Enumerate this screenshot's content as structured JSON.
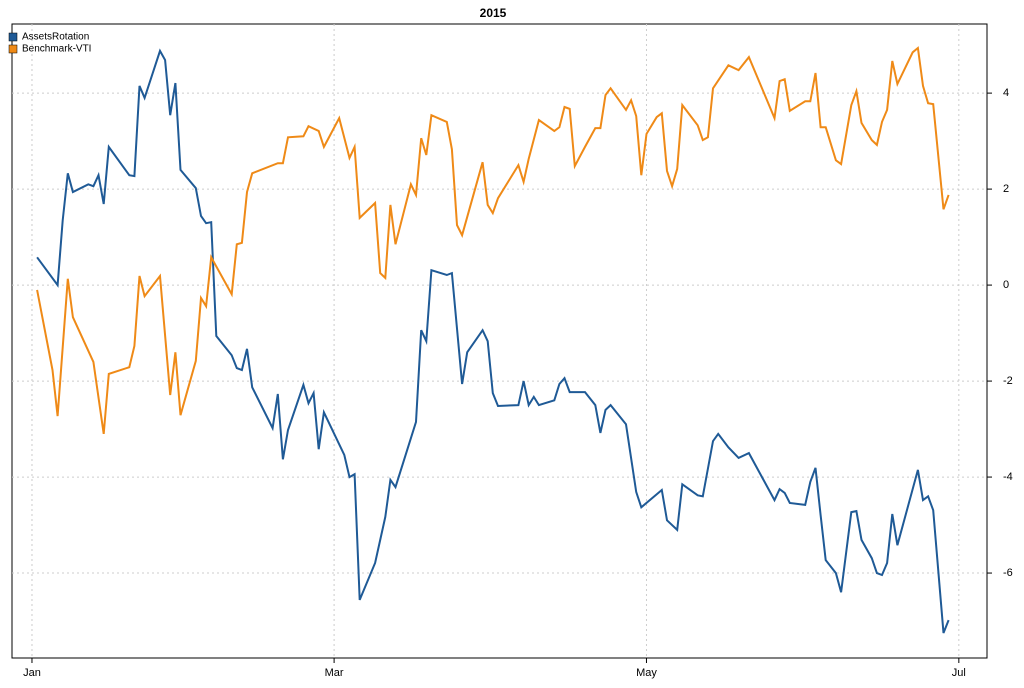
{
  "chart_data": {
    "type": "line",
    "title": "2015",
    "xlim": [
      -2.9,
      187.5
    ],
    "ylim": [
      -7.77,
      5.44
    ],
    "xticks": [
      {
        "value": 1,
        "label": "Jan"
      },
      {
        "value": 60,
        "label": "Mar"
      },
      {
        "value": 121,
        "label": "May"
      },
      {
        "value": 182,
        "label": "Jul"
      }
    ],
    "yticks": [
      -6,
      -4,
      -2,
      0,
      2,
      4
    ],
    "grid": true,
    "legend": "top-left",
    "series": [
      {
        "name": "AssetsRotation",
        "color": "#1f5a96",
        "x": [
          2,
          6,
          7,
          8,
          9,
          12,
          13,
          14,
          15,
          16,
          20,
          21,
          22,
          23,
          26,
          27,
          28,
          29,
          30,
          33,
          34,
          35,
          36,
          37,
          40,
          41,
          42,
          43,
          44,
          48,
          49,
          50,
          51,
          54,
          55,
          56,
          57,
          58,
          62,
          63,
          64,
          65,
          68,
          70,
          71,
          72,
          76,
          77,
          78,
          79,
          82,
          83,
          85,
          86,
          89,
          90,
          91,
          92,
          96,
          97,
          98,
          99,
          100,
          103,
          104,
          105,
          106,
          109,
          111,
          112,
          113,
          114,
          117,
          119,
          120,
          124,
          125,
          127,
          128,
          131,
          132,
          134,
          135,
          137,
          139,
          141,
          146,
          147,
          148,
          149,
          152,
          153,
          154,
          155,
          156,
          158,
          159,
          161,
          162,
          163,
          165,
          166,
          167,
          168,
          169,
          170,
          174,
          175,
          176,
          177,
          179,
          180
        ],
        "values": [
          0.58,
          0,
          1.35,
          2.33,
          1.94,
          2.1,
          2.06,
          2.29,
          1.69,
          2.88,
          2.29,
          2.27,
          4.15,
          3.9,
          4.88,
          4.69,
          3.54,
          4.21,
          2.4,
          2.02,
          1.44,
          1.29,
          1.31,
          -1.06,
          -1.46,
          -1.73,
          -1.77,
          -1.33,
          -2.13,
          -2.98,
          -2.27,
          -3.63,
          -3.02,
          -2.08,
          -2.46,
          -2.25,
          -3.42,
          -2.65,
          -3.54,
          -4.0,
          -3.94,
          -6.56,
          -5.79,
          -4.83,
          -4.06,
          -4.21,
          -2.85,
          -0.94,
          -1.17,
          0.31,
          0.21,
          0.25,
          -2.06,
          -1.4,
          -0.94,
          -1.17,
          -2.25,
          -2.52,
          -2.5,
          -2.0,
          -2.5,
          -2.33,
          -2.5,
          -2.4,
          -2.06,
          -1.94,
          -2.23,
          -2.23,
          -2.5,
          -3.08,
          -2.6,
          -2.5,
          -2.9,
          -4.31,
          -4.63,
          -4.27,
          -4.9,
          -5.1,
          -4.15,
          -4.38,
          -4.4,
          -3.25,
          -3.1,
          -3.38,
          -3.6,
          -3.5,
          -4.48,
          -4.25,
          -4.33,
          -4.54,
          -4.58,
          -4.1,
          -3.81,
          -4.79,
          -5.73,
          -6.0,
          -6.4,
          -4.73,
          -4.71,
          -5.31,
          -5.69,
          -6.0,
          -6.04,
          -5.79,
          -4.77,
          -5.42,
          -3.85,
          -4.48,
          -4.4,
          -4.69,
          -7.25,
          -6.98
        ]
      },
      {
        "name": "Benchmark-VTI",
        "color": "#ef8a17",
        "x": [
          2,
          5,
          6,
          8,
          9,
          13,
          15,
          16,
          20,
          21,
          22,
          23,
          26,
          28,
          29,
          30,
          33,
          34,
          35,
          36,
          40,
          41,
          42,
          43,
          44,
          49,
          50,
          51,
          54,
          55,
          57,
          58,
          61,
          63,
          64,
          65,
          68,
          69,
          70,
          71,
          72,
          75,
          76,
          77,
          78,
          79,
          82,
          83,
          84,
          85,
          89,
          90,
          91,
          92,
          96,
          97,
          98,
          100,
          103,
          104,
          105,
          106,
          107,
          109,
          111,
          112,
          113,
          114,
          117,
          118,
          119,
          120,
          121,
          123,
          124,
          125,
          126,
          127,
          128,
          131,
          132,
          133,
          134,
          137,
          139,
          141,
          146,
          147,
          148,
          149,
          152,
          153,
          154,
          155,
          156,
          158,
          159,
          161,
          162,
          163,
          165,
          166,
          167,
          168,
          169,
          170,
          173,
          174,
          175,
          176,
          177,
          179,
          180
        ],
        "values": [
          -0.1,
          -1.77,
          -2.73,
          0.13,
          -0.67,
          -1.6,
          -3.1,
          -1.85,
          -1.71,
          -1.27,
          0.19,
          -0.23,
          0.19,
          -2.29,
          -1.4,
          -2.71,
          -1.58,
          -0.27,
          -0.44,
          0.58,
          -0.19,
          0.85,
          0.88,
          1.94,
          2.33,
          2.54,
          2.54,
          3.08,
          3.1,
          3.31,
          3.21,
          2.88,
          3.48,
          2.65,
          2.88,
          1.4,
          1.71,
          0.25,
          0.15,
          1.67,
          0.85,
          2.1,
          1.88,
          3.06,
          2.71,
          3.54,
          3.4,
          2.83,
          1.25,
          1.04,
          2.56,
          1.67,
          1.5,
          1.81,
          2.5,
          2.15,
          2.63,
          3.44,
          3.21,
          3.29,
          3.71,
          3.67,
          2.48,
          2.88,
          3.27,
          3.27,
          3.96,
          4.1,
          3.65,
          3.85,
          3.52,
          2.29,
          3.15,
          3.5,
          3.58,
          2.38,
          2.06,
          2.42,
          3.75,
          3.33,
          3.02,
          3.08,
          4.1,
          4.58,
          4.48,
          4.75,
          3.48,
          4.25,
          4.29,
          3.63,
          3.83,
          3.83,
          4.42,
          3.29,
          3.29,
          2.6,
          2.52,
          3.75,
          4.04,
          3.38,
          3.02,
          2.92,
          3.4,
          3.65,
          4.67,
          4.19,
          4.85,
          4.94,
          4.15,
          3.79,
          3.77,
          1.58,
          1.88
        ]
      }
    ]
  }
}
